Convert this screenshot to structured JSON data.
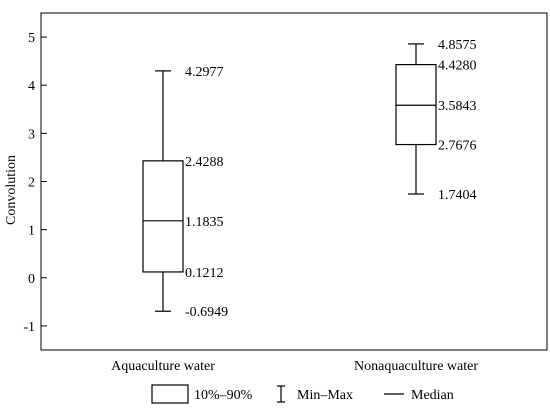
{
  "chart_data": {
    "type": "box",
    "ylabel": "Convolution",
    "ylim": [
      -1.5,
      5.5
    ],
    "yticks": [
      -1,
      0,
      1,
      2,
      3,
      4,
      5
    ],
    "categories": [
      "Aquaculture water",
      "Nonaquaculture water"
    ],
    "boxes": [
      {
        "category": "Aquaculture water",
        "min": -0.6949,
        "q10": 0.1212,
        "median": 1.1835,
        "q90": 2.4288,
        "max": 4.2977,
        "labels": {
          "min": "-0.6949",
          "q10": "0.1212",
          "median": "1.1835",
          "q90": "2.4288",
          "max": "4.2977"
        }
      },
      {
        "category": "Nonaquaculture water",
        "min": 1.7404,
        "q10": 2.7676,
        "median": 3.5843,
        "q90": 4.428,
        "max": 4.8575,
        "labels": {
          "min": "1.7404",
          "q10": "2.7676",
          "median": "3.5843",
          "q90": "4.4280",
          "max": "4.8575"
        }
      }
    ],
    "legend": {
      "position": "bottom",
      "items": [
        "10%–90%",
        "Min–Max",
        "Median"
      ]
    },
    "grid": false
  }
}
